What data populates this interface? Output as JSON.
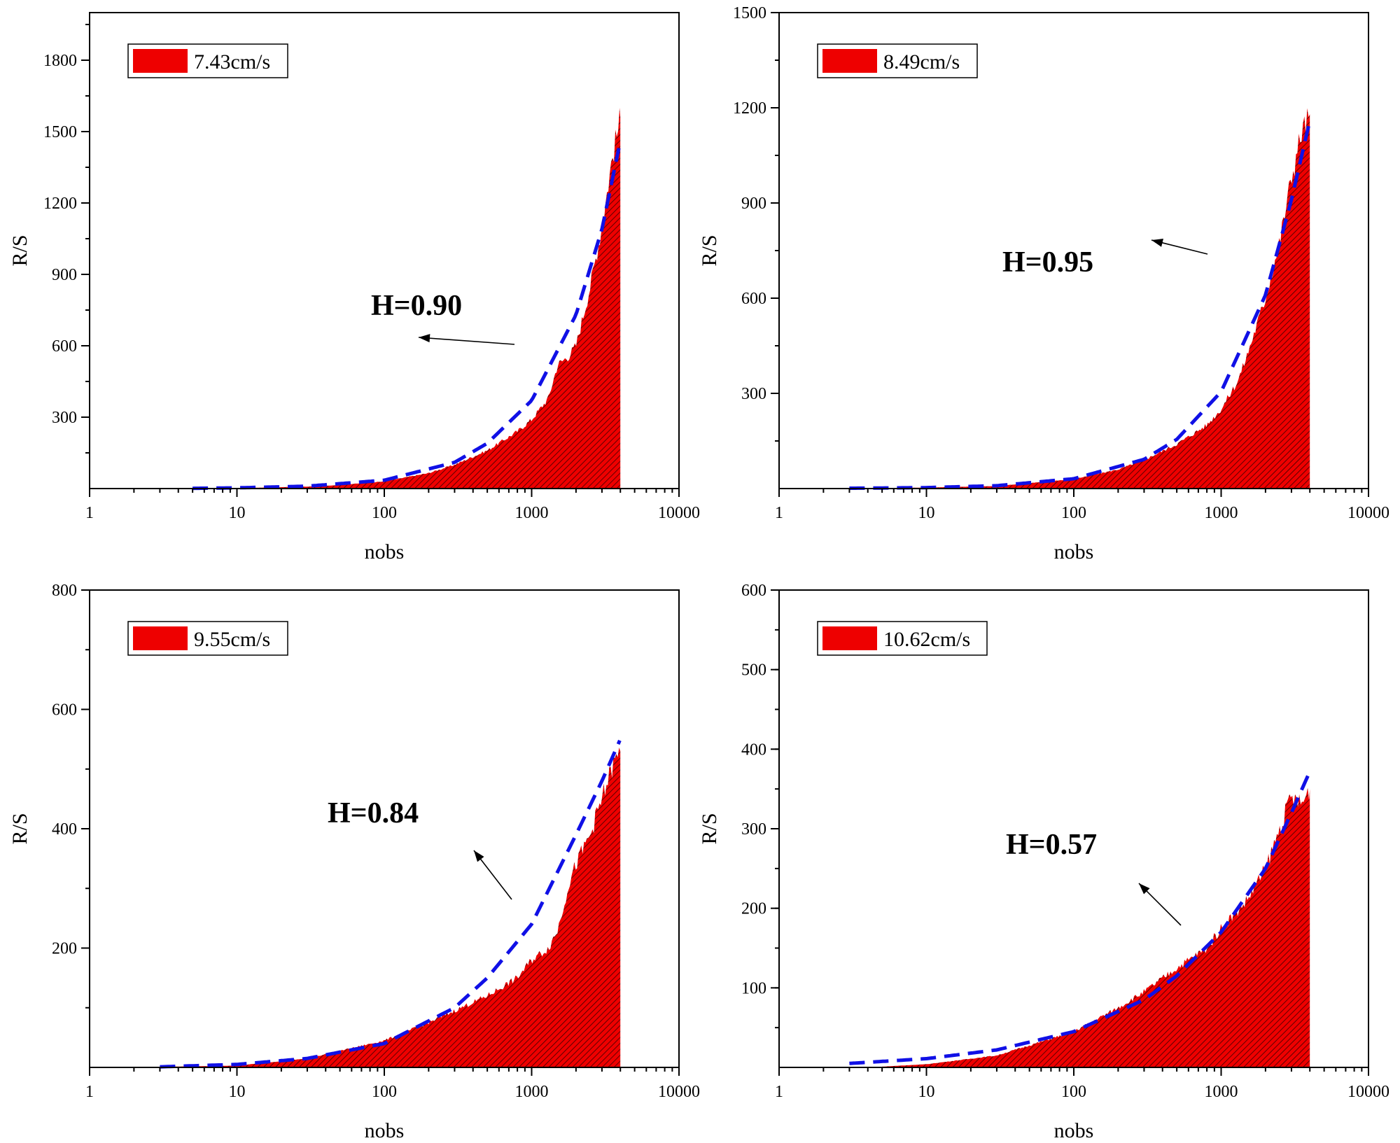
{
  "colors": {
    "fill": "#ee0000",
    "hatch": "#3a0000",
    "fit_line": "#1010e6",
    "axis": "#000000"
  },
  "chart_data": [
    {
      "type": "area",
      "xscale": "log",
      "xlim": [
        1,
        10000
      ],
      "ylim": [
        0,
        2000
      ],
      "x_ticks": [
        1,
        10,
        100,
        1000,
        10000
      ],
      "x_tick_labels": [
        "1",
        "10",
        "100",
        "1000",
        "10000"
      ],
      "y_ticks": [
        300,
        600,
        900,
        1200,
        1500,
        1800
      ],
      "y_tick_labels": [
        "300",
        "600",
        "900",
        "1200",
        "1500",
        "1800"
      ],
      "xlabel": "nobs",
      "ylabel": "R/S",
      "legend": "7.43cm/s",
      "legend_position": "top-left",
      "annotation": "H=0.90",
      "series": [
        {
          "name": "7.43cm/s",
          "x": [
            5,
            10,
            30,
            50,
            100,
            200,
            300,
            500,
            800,
            1000,
            1300,
            1500,
            1800,
            2000,
            2500,
            3000,
            3500,
            4000
          ],
          "y": [
            1,
            2,
            8,
            15,
            30,
            65,
            100,
            160,
            240,
            290,
            380,
            520,
            560,
            600,
            850,
            1100,
            1380,
            1560
          ]
        },
        {
          "name": "fit",
          "x": [
            5,
            10,
            30,
            100,
            300,
            500,
            1000,
            2000,
            3000,
            4000
          ],
          "y": [
            1,
            3,
            10,
            35,
            110,
            190,
            370,
            730,
            1090,
            1460
          ]
        }
      ]
    },
    {
      "type": "area",
      "xscale": "log",
      "xlim": [
        1,
        10000
      ],
      "ylim": [
        0,
        1500
      ],
      "x_ticks": [
        1,
        10,
        100,
        1000,
        10000
      ],
      "x_tick_labels": [
        "1",
        "10",
        "100",
        "1000",
        "10000"
      ],
      "y_ticks": [
        300,
        600,
        900,
        1200,
        1500
      ],
      "y_tick_labels": [
        "300",
        "600",
        "900",
        "1200",
        "1500"
      ],
      "xlabel": "nobs",
      "ylabel": "R/S",
      "legend": "8.49cm/s",
      "legend_position": "top-left",
      "annotation": "H=0.95",
      "series": [
        {
          "name": "8.49cm/s",
          "x": [
            3,
            10,
            30,
            100,
            200,
            300,
            500,
            800,
            1000,
            1300,
            1500,
            2000,
            2500,
            3000,
            3500,
            4000
          ],
          "y": [
            1,
            3,
            8,
            30,
            60,
            90,
            140,
            200,
            250,
            340,
            420,
            600,
            780,
            980,
            1120,
            1180
          ]
        },
        {
          "name": "fit",
          "x": [
            3,
            10,
            30,
            100,
            300,
            500,
            1000,
            2000,
            3000,
            4000
          ],
          "y": [
            1,
            3,
            9,
            31,
            92,
            155,
            305,
            610,
            910,
            1160
          ]
        }
      ]
    },
    {
      "type": "area",
      "xscale": "log",
      "xlim": [
        1,
        10000
      ],
      "ylim": [
        0,
        800
      ],
      "x_ticks": [
        1,
        10,
        100,
        1000,
        10000
      ],
      "x_tick_labels": [
        "1",
        "10",
        "100",
        "1000",
        "10000"
      ],
      "y_ticks": [
        200,
        400,
        600,
        800
      ],
      "y_tick_labels": [
        "200",
        "400",
        "600",
        "800"
      ],
      "xlabel": "nobs",
      "ylabel": "R/S",
      "legend": "9.55cm/s",
      "legend_position": "top-left",
      "annotation": "H=0.84",
      "series": [
        {
          "name": "9.55cm/s",
          "x": [
            3,
            10,
            30,
            100,
            200,
            300,
            500,
            800,
            1000,
            1300,
            1500,
            1800,
            2000,
            2500,
            3000,
            3500,
            4000
          ],
          "y": [
            1,
            3,
            15,
            45,
            75,
            95,
            120,
            150,
            180,
            200,
            230,
            310,
            340,
            390,
            450,
            500,
            530
          ]
        },
        {
          "name": "fit",
          "x": [
            3,
            10,
            30,
            100,
            300,
            500,
            1000,
            2000,
            3000,
            4000
          ],
          "y": [
            1,
            5,
            15,
            40,
            100,
            150,
            240,
            390,
            480,
            550
          ]
        }
      ]
    },
    {
      "type": "area",
      "xscale": "log",
      "xlim": [
        1,
        10000
      ],
      "ylim": [
        0,
        600
      ],
      "x_ticks": [
        1,
        10,
        100,
        1000,
        10000
      ],
      "x_tick_labels": [
        "1",
        "10",
        "100",
        "1000",
        "10000"
      ],
      "y_ticks": [
        100,
        200,
        300,
        400,
        500,
        600
      ],
      "y_tick_labels": [
        "100",
        "200",
        "300",
        "400",
        "500",
        "600"
      ],
      "xlabel": "nobs",
      "ylabel": "R/S",
      "legend": "10.62cm/s",
      "legend_position": "top-left",
      "annotation": "H=0.57",
      "series": [
        {
          "name": "10.62cm/s",
          "x": [
            5,
            10,
            30,
            100,
            200,
            300,
            500,
            800,
            1000,
            1500,
            2000,
            2500,
            3000,
            3500,
            4000
          ],
          "y": [
            1,
            4,
            15,
            45,
            75,
            95,
            125,
            150,
            175,
            210,
            250,
            300,
            340,
            330,
            350
          ]
        },
        {
          "name": "fit",
          "x": [
            3,
            10,
            30,
            100,
            300,
            500,
            1000,
            2000,
            3000,
            4000
          ],
          "y": [
            5,
            11,
            22,
            45,
            85,
            115,
            170,
            250,
            320,
            372
          ]
        }
      ]
    }
  ]
}
